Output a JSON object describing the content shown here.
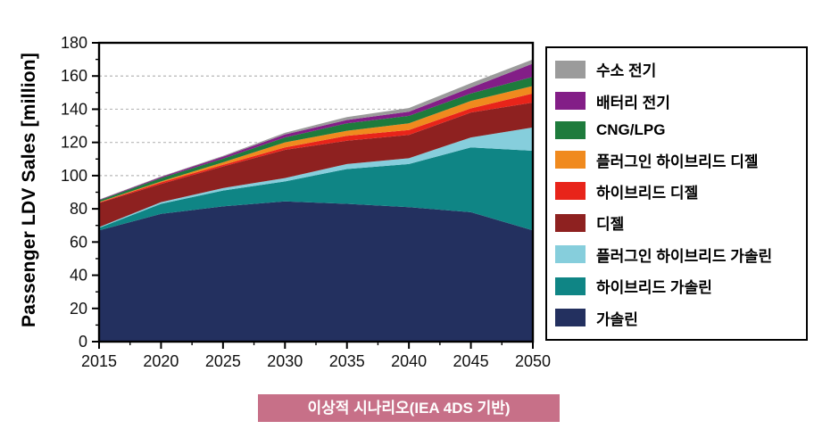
{
  "page": {
    "background": "#ffffff"
  },
  "chart_data": {
    "type": "area",
    "stacked": true,
    "title": "",
    "xlabel": "",
    "ylabel": "Passenger LDV Sales [million]",
    "x": [
      2015,
      2020,
      2025,
      2030,
      2035,
      2040,
      2045,
      2050
    ],
    "ylim": [
      0,
      180
    ],
    "ytick_step": 20,
    "y_minor_step": 10,
    "x_minor_step": 2.5,
    "grid": "horizontal-dashed",
    "legend_position": "right",
    "legend_order": "reverse-of-stack",
    "series": [
      {
        "key": "gasoline",
        "name": "가솔린",
        "color": "#23305F",
        "values": [
          67,
          77,
          81.5,
          84.5,
          83,
          81,
          78,
          67
        ]
      },
      {
        "key": "hybrid-gasoline",
        "name": "하이브리드 가솔린",
        "color": "#0F8585",
        "values": [
          1.5,
          6,
          9.5,
          12,
          21,
          26,
          39,
          48
        ]
      },
      {
        "key": "plugin-hybrid-gasoline",
        "name": "플러그인 하이브리드 가솔린",
        "color": "#86CEDC",
        "values": [
          0.5,
          1,
          1.5,
          2,
          3,
          3.5,
          6,
          14
        ]
      },
      {
        "key": "diesel",
        "name": "디젤",
        "color": "#8E2120",
        "values": [
          14.5,
          11,
          13,
          17,
          14,
          14,
          15,
          15
        ]
      },
      {
        "key": "hybrid-diesel",
        "name": "하이브리드 디젤",
        "color": "#E8241A",
        "values": [
          0.3,
          1,
          1,
          1.5,
          3,
          3,
          2.5,
          5.5
        ]
      },
      {
        "key": "plugin-hybrid-diesel",
        "name": "플러그인 하이브리드 디젤",
        "color": "#F08A1E",
        "values": [
          0.3,
          0.5,
          1.5,
          3,
          3,
          4,
          4.5,
          4.5
        ]
      },
      {
        "key": "cng-lpg",
        "name": "CNG/LPG",
        "color": "#1E7B3C",
        "values": [
          1,
          2,
          2.2,
          3,
          4.5,
          4.5,
          4.5,
          5.5
        ]
      },
      {
        "key": "battery-electric",
        "name": "배터리 전기",
        "color": "#831E87",
        "values": [
          0.3,
          0.7,
          1.2,
          1.8,
          2,
          2.5,
          3.5,
          8
        ]
      },
      {
        "key": "hydrogen-electric",
        "name": "수소 전기",
        "color": "#9B9B9B",
        "values": [
          0.2,
          0.3,
          0.5,
          1,
          1.8,
          2.2,
          2.7,
          2.5
        ]
      }
    ]
  },
  "caption": {
    "text": "이상적 시나리오(IEA 4DS 기반)",
    "bg": "#C77088",
    "color": "#ffffff"
  },
  "axis": {
    "frame_color": "#000000",
    "tick_color": "#000000",
    "grid_color": "#b8b8b8",
    "label_color": "#111111"
  }
}
